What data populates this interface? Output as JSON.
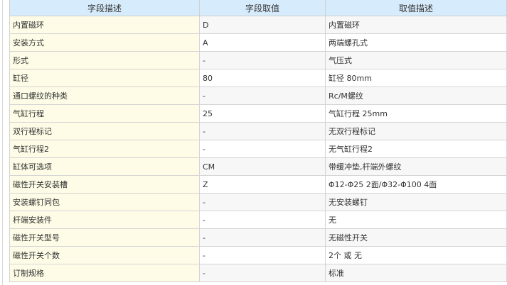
{
  "headers": [
    "字段描述",
    "字段取值",
    "取值描述"
  ],
  "rows": [
    [
      "内置磁环",
      "D",
      "内置磁环"
    ],
    [
      "安装方式",
      "A",
      "两端螺孔式"
    ],
    [
      "形式",
      "-",
      "气压式"
    ],
    [
      "缸径",
      "80",
      "缸径 80mm"
    ],
    [
      "通口螺纹的种类",
      "-",
      "Rc/M螺纹"
    ],
    [
      "气缸行程",
      "25",
      "气缸行程 25mm"
    ],
    [
      "双行程标记",
      "-",
      "无双行程标记"
    ],
    [
      "气缸行程2",
      "-",
      "无气缸行程2"
    ],
    [
      "缸体可选项",
      "CM",
      "带缓冲垫,杆端外螺纹"
    ],
    [
      "磁性开关安装槽",
      "Z",
      "Φ12-Φ25 2面/Φ32-Φ100 4面"
    ],
    [
      "安装螺钉同包",
      "-",
      "无安装螺钉"
    ],
    [
      "杆端安装件",
      "-",
      "无"
    ],
    [
      "磁性开关型号",
      "-",
      "无磁性开关"
    ],
    [
      "磁性开关个数",
      "-",
      "2个 或 无"
    ],
    [
      "订制规格",
      "-",
      "标准"
    ]
  ]
}
